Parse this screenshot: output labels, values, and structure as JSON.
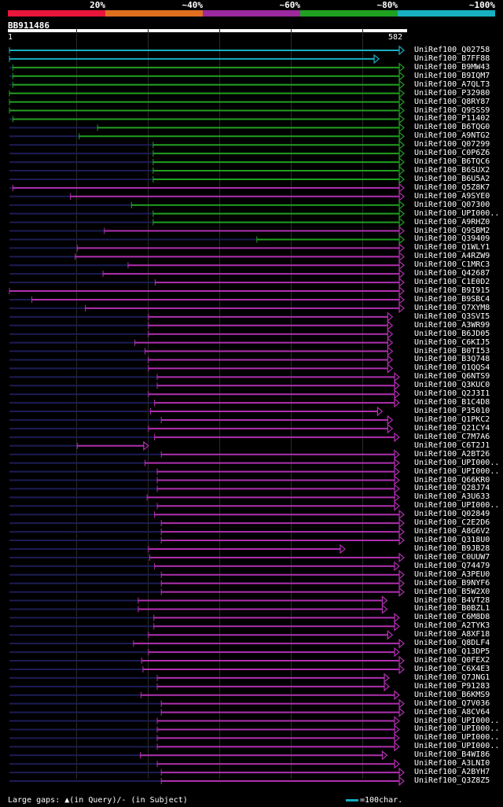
{
  "legend": [
    {
      "label": "20%",
      "color": "#e8163a"
    },
    {
      "label": "~40%",
      "color": "#e07020"
    },
    {
      "label": "~60%",
      "color": "#9c2a9e"
    },
    {
      "label": "~80%",
      "color": "#20a020"
    },
    {
      "label": "~100%",
      "color": "#18b0c0"
    }
  ],
  "query_id": "BB911486",
  "ruler": {
    "start": "1",
    "end": "582"
  },
  "footer": {
    "gaps": "Large gaps: ▲(in Query)/- (in Subject)",
    "scale": "=100char."
  },
  "hits": [
    {
      "name": "UniRef100_Q02758",
      "start": 0,
      "end": 582,
      "color": "cyan"
    },
    {
      "name": "UniRef100_B7FF88",
      "start": 0,
      "end": 545,
      "color": "cyan"
    },
    {
      "name": "UniRef100_B9MW43",
      "start": 5,
      "end": 582,
      "color": "green"
    },
    {
      "name": "UniRef100_B9IQM7",
      "start": 5,
      "end": 582,
      "color": "green"
    },
    {
      "name": "UniRef100_A7QLT3",
      "start": 5,
      "end": 582,
      "color": "green"
    },
    {
      "name": "UniRef100_P32980",
      "start": 0,
      "end": 582,
      "color": "green"
    },
    {
      "name": "UniRef100_Q8RY87",
      "start": 0,
      "end": 582,
      "color": "green"
    },
    {
      "name": "UniRef100_Q9SSS9",
      "start": 0,
      "end": 582,
      "color": "green"
    },
    {
      "name": "UniRef100_P11402",
      "start": 5,
      "end": 582,
      "color": "green"
    },
    {
      "name": "UniRef100_B6TQG0",
      "start": 130,
      "end": 582,
      "color": "green"
    },
    {
      "name": "UniRef100_A9NTG2",
      "start": 103,
      "end": 582,
      "color": "green"
    },
    {
      "name": "UniRef100_Q07299",
      "start": 212,
      "end": 582,
      "color": "green"
    },
    {
      "name": "UniRef100_C0P6Z6",
      "start": 212,
      "end": 582,
      "color": "green"
    },
    {
      "name": "UniRef100_B6TQC6",
      "start": 212,
      "end": 582,
      "color": "green"
    },
    {
      "name": "UniRef100_B6SUX2",
      "start": 212,
      "end": 582,
      "color": "green"
    },
    {
      "name": "UniRef100_B6U5A2",
      "start": 212,
      "end": 582,
      "color": "green"
    },
    {
      "name": "UniRef100_Q5Z8K7",
      "start": 5,
      "end": 582,
      "color": "purple"
    },
    {
      "name": "UniRef100_A9SYE0",
      "start": 90,
      "end": 582,
      "color": "purple"
    },
    {
      "name": "UniRef100_Q07300",
      "start": 180,
      "end": 582,
      "color": "green"
    },
    {
      "name": "UniRef100_UPI000..",
      "start": 212,
      "end": 582,
      "color": "green"
    },
    {
      "name": "UniRef100_A9RHZ0",
      "start": 212,
      "end": 582,
      "color": "green"
    },
    {
      "name": "UniRef100_Q9SBM2",
      "start": 140,
      "end": 582,
      "color": "purple"
    },
    {
      "name": "UniRef100_Q39409",
      "start": 365,
      "end": 582,
      "color": "green"
    },
    {
      "name": "UniRef100_Q1WLY1",
      "start": 100,
      "end": 582,
      "color": "purple"
    },
    {
      "name": "UniRef100_A4RZW9",
      "start": 97,
      "end": 582,
      "color": "purple"
    },
    {
      "name": "UniRef100_C1MRC3",
      "start": 175,
      "end": 582,
      "color": "purple"
    },
    {
      "name": "UniRef100_Q42687",
      "start": 138,
      "end": 582,
      "color": "purple"
    },
    {
      "name": "UniRef100_C1E0D2",
      "start": 215,
      "end": 582,
      "color": "purple"
    },
    {
      "name": "UniRef100_B9I915",
      "start": 0,
      "end": 582,
      "color": "purple"
    },
    {
      "name": "UniRef100_B9SBC4",
      "start": 33,
      "end": 582,
      "color": "purple"
    },
    {
      "name": "UniRef100_Q7XYM8",
      "start": 112,
      "end": 582,
      "color": "purple"
    },
    {
      "name": "UniRef100_Q3SVI5",
      "start": 205,
      "end": 565,
      "color": "purple"
    },
    {
      "name": "UniRef100_A3WR99",
      "start": 205,
      "end": 565,
      "color": "purple"
    },
    {
      "name": "UniRef100_B6JD05",
      "start": 205,
      "end": 565,
      "color": "purple"
    },
    {
      "name": "UniRef100_C6KIJ5",
      "start": 185,
      "end": 565,
      "color": "purple"
    },
    {
      "name": "UniRef100_B0TI53",
      "start": 200,
      "end": 565,
      "color": "purple"
    },
    {
      "name": "UniRef100_B3Q748",
      "start": 205,
      "end": 565,
      "color": "purple"
    },
    {
      "name": "UniRef100_Q1QQS4",
      "start": 205,
      "end": 565,
      "color": "purple"
    },
    {
      "name": "UniRef100_Q6NTS9",
      "start": 218,
      "end": 575,
      "color": "purple"
    },
    {
      "name": "UniRef100_Q3KUC0",
      "start": 218,
      "end": 575,
      "color": "purple"
    },
    {
      "name": "UniRef100_Q2J3I1",
      "start": 205,
      "end": 575,
      "color": "purple"
    },
    {
      "name": "UniRef100_B1C4D8",
      "start": 214,
      "end": 575,
      "color": "purple"
    },
    {
      "name": "UniRef100_P35010",
      "start": 208,
      "end": 550,
      "color": "purple"
    },
    {
      "name": "UniRef100_Q1PKC2",
      "start": 224,
      "end": 565,
      "color": "purple"
    },
    {
      "name": "UniRef100_Q21CY4",
      "start": 205,
      "end": 565,
      "color": "purple"
    },
    {
      "name": "UniRef100_C7M7A6",
      "start": 214,
      "end": 575,
      "color": "purple"
    },
    {
      "name": "UniRef100_C6T2J1",
      "start": 100,
      "end": 205,
      "color": "purple"
    },
    {
      "name": "UniRef100_A2BT26",
      "start": 224,
      "end": 575,
      "color": "purple"
    },
    {
      "name": "UniRef100_UPI000..",
      "start": 200,
      "end": 575,
      "color": "purple"
    },
    {
      "name": "UniRef100_UPI000..",
      "start": 218,
      "end": 575,
      "color": "purple"
    },
    {
      "name": "UniRef100_Q66KR0",
      "start": 218,
      "end": 575,
      "color": "purple"
    },
    {
      "name": "UniRef100_Q28J74",
      "start": 218,
      "end": 575,
      "color": "purple"
    },
    {
      "name": "UniRef100_A3U633",
      "start": 203,
      "end": 575,
      "color": "purple"
    },
    {
      "name": "UniRef100_UPI000..",
      "start": 218,
      "end": 575,
      "color": "purple"
    },
    {
      "name": "UniRef100_Q02849",
      "start": 214,
      "end": 582,
      "color": "purple"
    },
    {
      "name": "UniRef100_C2E2D6",
      "start": 224,
      "end": 582,
      "color": "purple"
    },
    {
      "name": "UniRef100_A8G6V2",
      "start": 224,
      "end": 582,
      "color": "purple"
    },
    {
      "name": "UniRef100_Q318U0",
      "start": 224,
      "end": 582,
      "color": "purple"
    },
    {
      "name": "UniRef100_B9JB28",
      "start": 205,
      "end": 495,
      "color": "purple"
    },
    {
      "name": "UniRef100_C0UUW7",
      "start": 207,
      "end": 582,
      "color": "purple"
    },
    {
      "name": "UniRef100_Q74479",
      "start": 214,
      "end": 575,
      "color": "purple"
    },
    {
      "name": "UniRef100_A3PEU0",
      "start": 224,
      "end": 582,
      "color": "purple"
    },
    {
      "name": "UniRef100_B9NYF6",
      "start": 224,
      "end": 582,
      "color": "purple"
    },
    {
      "name": "UniRef100_B5W2X0",
      "start": 224,
      "end": 582,
      "color": "purple"
    },
    {
      "name": "UniRef100_B4VT28",
      "start": 190,
      "end": 557,
      "color": "purple"
    },
    {
      "name": "UniRef100_B0BZL1",
      "start": 190,
      "end": 557,
      "color": "purple"
    },
    {
      "name": "UniRef100_C6M8D8",
      "start": 213,
      "end": 575,
      "color": "purple"
    },
    {
      "name": "UniRef100_A2TYK3",
      "start": 213,
      "end": 575,
      "color": "purple"
    },
    {
      "name": "UniRef100_A8XF18",
      "start": 205,
      "end": 565,
      "color": "purple"
    },
    {
      "name": "UniRef100_Q8DLF4",
      "start": 183,
      "end": 582,
      "color": "purple"
    },
    {
      "name": "UniRef100_Q13DP5",
      "start": 205,
      "end": 575,
      "color": "purple"
    },
    {
      "name": "UniRef100_Q0FEX2",
      "start": 195,
      "end": 582,
      "color": "purple"
    },
    {
      "name": "UniRef100_C6X4E3",
      "start": 197,
      "end": 582,
      "color": "purple"
    },
    {
      "name": "UniRef100_Q7JNG1",
      "start": 218,
      "end": 560,
      "color": "purple"
    },
    {
      "name": "UniRef100_P91283",
      "start": 218,
      "end": 560,
      "color": "purple"
    },
    {
      "name": "UniRef100_B6KMS9",
      "start": 194,
      "end": 575,
      "color": "purple"
    },
    {
      "name": "UniRef100_Q7V036",
      "start": 224,
      "end": 582,
      "color": "purple"
    },
    {
      "name": "UniRef100_A8CV64",
      "start": 224,
      "end": 582,
      "color": "purple"
    },
    {
      "name": "UniRef100_UPI000..",
      "start": 218,
      "end": 575,
      "color": "purple"
    },
    {
      "name": "UniRef100_UPI000..",
      "start": 218,
      "end": 575,
      "color": "purple"
    },
    {
      "name": "UniRef100_UPI000..",
      "start": 218,
      "end": 575,
      "color": "purple"
    },
    {
      "name": "UniRef100_UPI000..",
      "start": 218,
      "end": 575,
      "color": "purple"
    },
    {
      "name": "UniRef100_B4WI86",
      "start": 193,
      "end": 557,
      "color": "purple"
    },
    {
      "name": "UniRef100_A3LNI0",
      "start": 218,
      "end": 575,
      "color": "purple"
    },
    {
      "name": "UniRef100_A2BYH7",
      "start": 224,
      "end": 582,
      "color": "purple"
    },
    {
      "name": "UniRef100_Q3Z8Z5",
      "start": 224,
      "end": 582,
      "color": "purple"
    }
  ],
  "colors": {
    "cyan": "#18b0c0",
    "green": "#20a020",
    "purple": "#b030b0",
    "track": "#1c1c55"
  }
}
